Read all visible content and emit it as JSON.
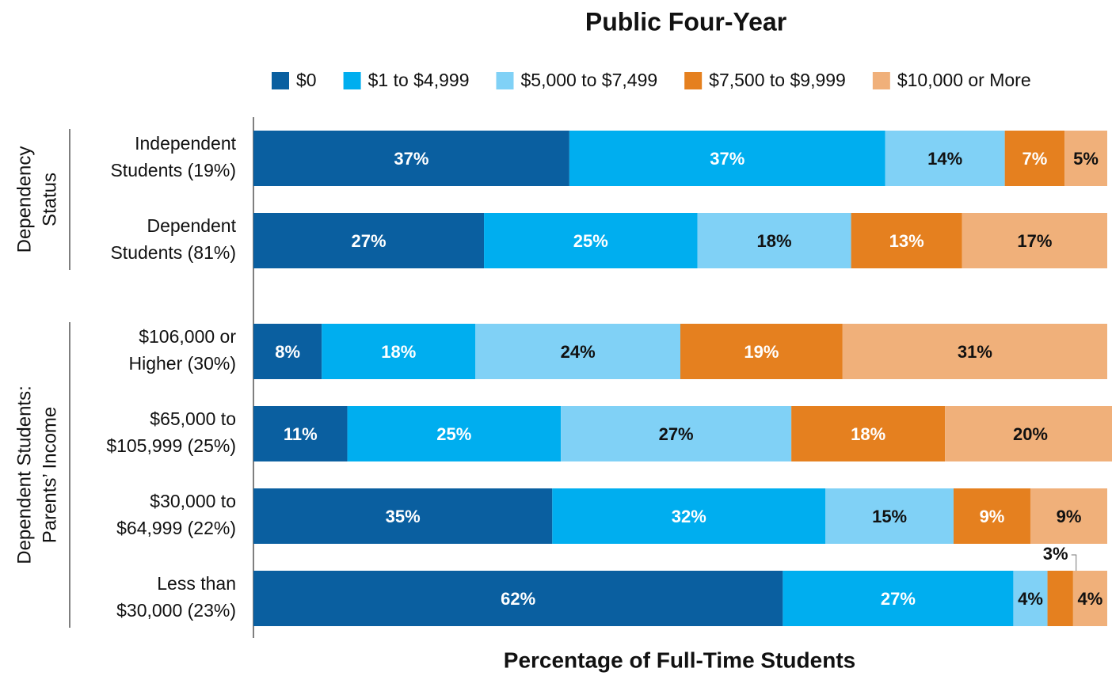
{
  "chart_data": {
    "type": "stacked_barh",
    "title": "Public Four-Year",
    "x_label": "Percentage of Full-Time Students",
    "xlim": [
      0,
      100
    ],
    "groups": [
      {
        "label": [
          "Dependency",
          "Status"
        ],
        "categories": [
          [
            "Independent",
            "Students (19%)"
          ],
          [
            "Dependent",
            "Students (81%)"
          ]
        ]
      },
      {
        "label": [
          "Dependent Students:",
          "Parents’ Income"
        ],
        "categories": [
          [
            "$106,000 or",
            "Higher (30%)"
          ],
          [
            "$65,000 to",
            "$105,999 (25%)"
          ],
          [
            "$30,000 to",
            "$64,999 (22%)"
          ],
          [
            "Less than",
            "$30,000 (23%)"
          ]
        ]
      }
    ],
    "series": [
      {
        "name": "$0",
        "color": "#0a5fa0",
        "label_color": "#ffffff",
        "values": [
          37,
          27,
          8,
          11,
          35,
          62
        ],
        "value_labels": [
          "37%",
          "27%",
          "8%",
          "11%",
          "35%",
          "62%"
        ]
      },
      {
        "name": "$1 to $4,999",
        "color": "#00aeef",
        "label_color": "#ffffff",
        "values": [
          37,
          25,
          18,
          25,
          32,
          27
        ],
        "value_labels": [
          "37%",
          "25%",
          "18%",
          "25%",
          "32%",
          "27%"
        ]
      },
      {
        "name": "$5,000 to $7,499",
        "color": "#80d1f6",
        "label_color": "#111111",
        "values": [
          14,
          18,
          24,
          27,
          15,
          4
        ],
        "value_labels": [
          "14%",
          "18%",
          "24%",
          "27%",
          "15%",
          "4%"
        ]
      },
      {
        "name": "$7,500 to $9,999",
        "color": "#e5801f",
        "label_color": "#ffffff",
        "values": [
          7,
          13,
          19,
          18,
          9,
          3
        ],
        "value_labels": [
          "7%",
          "13%",
          "19%",
          "18%",
          "9%",
          "3%"
        ]
      },
      {
        "name": "$10,000 or More",
        "color": "#f0b07a",
        "label_color": "#111111",
        "values": [
          5,
          17,
          31,
          20,
          9,
          4
        ],
        "value_labels": [
          "5%",
          "17%",
          "31%",
          "20%",
          "9%",
          "4%"
        ]
      }
    ]
  }
}
